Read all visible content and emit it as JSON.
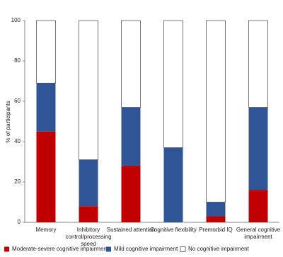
{
  "chart_data": {
    "type": "stacked_bar",
    "y_label": "% of participants",
    "categories": [
      "Memory",
      "Inhibitory control/processing speed",
      "Sustained attention",
      "Cognitive flexibility",
      "Premorbid IQ",
      "General cognitive impairment"
    ],
    "series": [
      {
        "name": "Moderate-severe cognitive impairment",
        "color": "#c00000",
        "values": [
          45,
          8,
          28,
          0,
          3,
          16
        ]
      },
      {
        "name": "Mild cognitive impairment",
        "color": "#2f5597",
        "values": [
          24,
          23,
          29,
          37,
          7,
          41
        ]
      },
      {
        "name": "No cognitive impairment",
        "color": "#ffffff",
        "values": [
          31,
          69,
          43,
          63,
          90,
          43
        ]
      }
    ],
    "ylim": [
      0,
      100
    ],
    "yticks": [
      0,
      20,
      40,
      60,
      80,
      100
    ],
    "grid": false,
    "legend": "bottom"
  }
}
